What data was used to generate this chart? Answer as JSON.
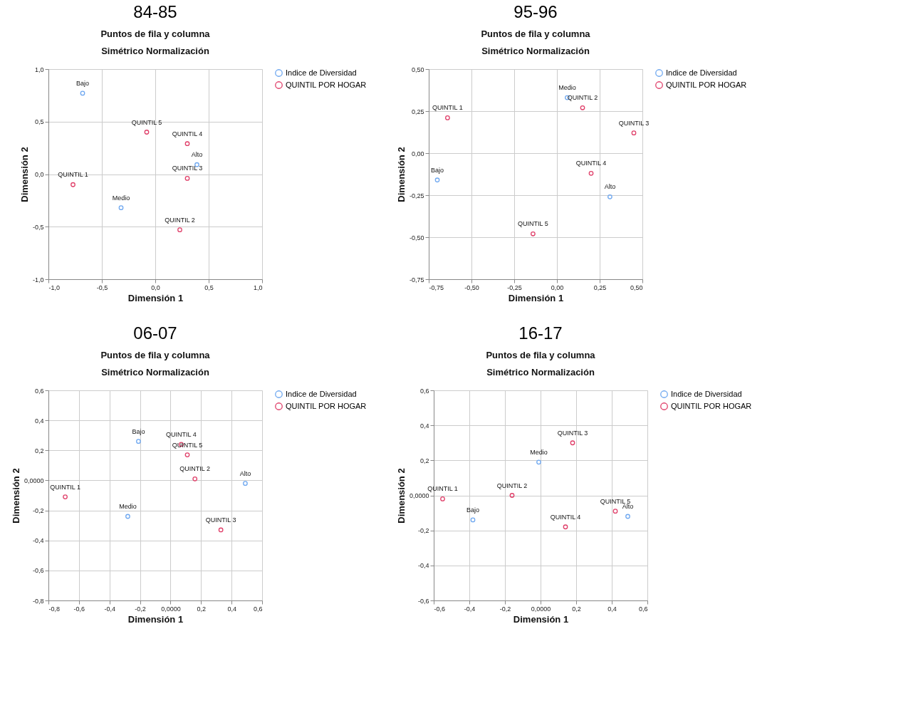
{
  "chart_data": [
    {
      "type": "scatter",
      "title": "84-85",
      "subtitle": "Puntos de fila y columna",
      "xlabel": "Dimensión 1",
      "ylabel": "Dimensión 2",
      "marker": "circle",
      "grid": true,
      "legend": "right",
      "xlim": [
        -1,
        1
      ],
      "ylim": [
        -1,
        1
      ],
      "xticks": [
        {
          "value": -1,
          "label": "-1,0"
        },
        {
          "value": -0.5,
          "label": "-0,5"
        },
        {
          "value": 0,
          "label": "0,0"
        },
        {
          "value": 0.5,
          "label": "0,5"
        },
        {
          "value": 1,
          "label": "1,0"
        }
      ],
      "yticks": [
        {
          "value": -1,
          "label": "-1,0"
        },
        {
          "value": -0.5,
          "label": "-0,5"
        },
        {
          "value": 0,
          "label": "0,0"
        },
        {
          "value": 0.5,
          "label": "0,5"
        },
        {
          "value": 1,
          "label": "1,0"
        }
      ],
      "series": [
        {
          "name": "Indice de Diversidad",
          "color": "#6fa8f0",
          "x": [
            -0.68,
            0.39,
            -0.32
          ],
          "values": [
            0.77,
            0.09,
            -0.32
          ]
        },
        {
          "name": "QUINTIL POR HOGAR",
          "color": "#e0406a",
          "x": [
            -0.77,
            0.23,
            0.3,
            0.3,
            -0.08
          ],
          "values": [
            -0.1,
            -0.53,
            -0.04,
            0.29,
            0.4
          ]
        }
      ],
      "annotations": [
        "Simétrico Normalización",
        {
          "text": "Bajo",
          "x": -0.68,
          "y": 0.77
        },
        {
          "text": "Alto",
          "x": 0.39,
          "y": 0.09
        },
        {
          "text": "Medio",
          "x": -0.32,
          "y": -0.32
        },
        {
          "text": "QUINTIL 1",
          "x": -0.77,
          "y": -0.1
        },
        {
          "text": "QUINTIL 2",
          "x": 0.23,
          "y": -0.53
        },
        {
          "text": "QUINTIL 3",
          "x": 0.3,
          "y": -0.04
        },
        {
          "text": "QUINTIL 4",
          "x": 0.3,
          "y": 0.29
        },
        {
          "text": "QUINTIL 5",
          "x": -0.08,
          "y": 0.4
        }
      ]
    },
    {
      "type": "scatter",
      "title": "95-96",
      "subtitle": "Puntos de fila y columna",
      "xlabel": "Dimensión 1",
      "ylabel": "Dimensión 2",
      "marker": "circle",
      "grid": true,
      "legend": "right",
      "xlim": [
        -0.75,
        0.5
      ],
      "ylim": [
        -0.75,
        0.5
      ],
      "xticks": [
        {
          "value": -0.75,
          "label": "-0,75"
        },
        {
          "value": -0.5,
          "label": "-0,50"
        },
        {
          "value": -0.25,
          "label": "-0,25"
        },
        {
          "value": 0,
          "label": "0,00"
        },
        {
          "value": 0.25,
          "label": "0,25"
        },
        {
          "value": 0.5,
          "label": "0,50"
        }
      ],
      "yticks": [
        {
          "value": -0.75,
          "label": "-0,75"
        },
        {
          "value": -0.5,
          "label": "-0,50"
        },
        {
          "value": -0.25,
          "label": "-0,25"
        },
        {
          "value": 0,
          "label": "0,00"
        },
        {
          "value": 0.25,
          "label": "0,25"
        },
        {
          "value": 0.5,
          "label": "0,50"
        }
      ],
      "series": [
        {
          "name": "Indice de Diversidad",
          "color": "#6fa8f0",
          "x": [
            0.06,
            -0.7,
            0.31
          ],
          "values": [
            0.33,
            -0.16,
            -0.26
          ]
        },
        {
          "name": "QUINTIL POR HOGAR",
          "color": "#e0406a",
          "x": [
            -0.64,
            0.15,
            0.45,
            0.2,
            -0.14
          ],
          "values": [
            0.21,
            0.27,
            0.12,
            -0.12,
            -0.48
          ]
        }
      ],
      "annotations": [
        "Simétrico Normalización",
        {
          "text": "Medio",
          "x": 0.06,
          "y": 0.33
        },
        {
          "text": "Bajo",
          "x": -0.7,
          "y": -0.16
        },
        {
          "text": "Alto",
          "x": 0.31,
          "y": -0.26
        },
        {
          "text": "QUINTIL 1",
          "x": -0.64,
          "y": 0.21
        },
        {
          "text": "QUINTIL 2",
          "x": 0.15,
          "y": 0.27
        },
        {
          "text": "QUINTIL 3",
          "x": 0.45,
          "y": 0.12
        },
        {
          "text": "QUINTIL 4",
          "x": 0.2,
          "y": -0.12
        },
        {
          "text": "QUINTIL 5",
          "x": -0.14,
          "y": -0.48
        }
      ]
    },
    {
      "type": "scatter",
      "title": "06-07",
      "subtitle": "Puntos de fila y columna",
      "xlabel": "Dimensión 1",
      "ylabel": "Dimensión 2",
      "marker": "circle",
      "grid": true,
      "legend": "right",
      "xlim": [
        -0.8,
        0.6
      ],
      "ylim": [
        -0.8,
        0.6
      ],
      "xticks": [
        {
          "value": -0.8,
          "label": "-0,8"
        },
        {
          "value": -0.6,
          "label": "-0,6"
        },
        {
          "value": -0.4,
          "label": "-0,4"
        },
        {
          "value": -0.2,
          "label": "-0,2"
        },
        {
          "value": 0,
          "label": "0,0000"
        },
        {
          "value": 0.2,
          "label": "0,2"
        },
        {
          "value": 0.4,
          "label": "0,4"
        },
        {
          "value": 0.6,
          "label": "0,6"
        }
      ],
      "yticks": [
        {
          "value": -0.8,
          "label": "-0,8"
        },
        {
          "value": -0.6,
          "label": "-0,6"
        },
        {
          "value": -0.4,
          "label": "-0,4"
        },
        {
          "value": -0.2,
          "label": "-0,2"
        },
        {
          "value": 0,
          "label": "0,0000"
        },
        {
          "value": 0.2,
          "label": "0,2"
        },
        {
          "value": 0.4,
          "label": "0,4"
        },
        {
          "value": 0.6,
          "label": "0,6"
        }
      ],
      "series": [
        {
          "name": "Indice de Diversidad",
          "color": "#6fa8f0",
          "x": [
            -0.21,
            -0.28,
            0.49
          ],
          "values": [
            0.26,
            -0.24,
            -0.02
          ]
        },
        {
          "name": "QUINTIL POR HOGAR",
          "color": "#e0406a",
          "x": [
            -0.69,
            0.16,
            0.33,
            0.07,
            0.11
          ],
          "values": [
            -0.11,
            0.01,
            -0.33,
            0.24,
            0.17
          ]
        }
      ],
      "annotations": [
        "Simétrico Normalización",
        {
          "text": "Bajo",
          "x": -0.21,
          "y": 0.26
        },
        {
          "text": "Medio",
          "x": -0.28,
          "y": -0.24
        },
        {
          "text": "Alto",
          "x": 0.49,
          "y": -0.02
        },
        {
          "text": "QUINTIL 1",
          "x": -0.69,
          "y": -0.11
        },
        {
          "text": "QUINTIL 2",
          "x": 0.16,
          "y": 0.01
        },
        {
          "text": "QUINTIL 3",
          "x": 0.33,
          "y": -0.33
        },
        {
          "text": "QUINTIL 4",
          "x": 0.07,
          "y": 0.24
        },
        {
          "text": "QUINTIL 5",
          "x": 0.11,
          "y": 0.17
        }
      ]
    },
    {
      "type": "scatter",
      "title": "16-17",
      "subtitle": "Puntos de fila y columna",
      "xlabel": "Dimensión 1",
      "ylabel": "Dimensión 2",
      "marker": "circle",
      "grid": true,
      "legend": "right",
      "xlim": [
        -0.6,
        0.6
      ],
      "ylim": [
        -0.6,
        0.6
      ],
      "xticks": [
        {
          "value": -0.6,
          "label": "-0,6"
        },
        {
          "value": -0.4,
          "label": "-0,4"
        },
        {
          "value": -0.2,
          "label": "-0,2"
        },
        {
          "value": 0,
          "label": "0,0000"
        },
        {
          "value": 0.2,
          "label": "0,2"
        },
        {
          "value": 0.4,
          "label": "0,4"
        },
        {
          "value": 0.6,
          "label": "0,6"
        }
      ],
      "yticks": [
        {
          "value": -0.6,
          "label": "-0,6"
        },
        {
          "value": -0.4,
          "label": "-0,4"
        },
        {
          "value": -0.2,
          "label": "-0,2"
        },
        {
          "value": 0,
          "label": "0,0000"
        },
        {
          "value": 0.2,
          "label": "0,2"
        },
        {
          "value": 0.4,
          "label": "0,4"
        },
        {
          "value": 0.6,
          "label": "0,6"
        }
      ],
      "series": [
        {
          "name": "Indice de Diversidad",
          "color": "#6fa8f0",
          "x": [
            -0.01,
            -0.38,
            0.49
          ],
          "values": [
            0.19,
            -0.14,
            -0.12
          ]
        },
        {
          "name": "QUINTIL POR HOGAR",
          "color": "#e0406a",
          "x": [
            -0.55,
            -0.16,
            0.18,
            0.14,
            0.42
          ],
          "values": [
            -0.02,
            0.0,
            0.3,
            -0.18,
            -0.09
          ]
        }
      ],
      "annotations": [
        "Simétrico Normalización",
        {
          "text": "Medio",
          "x": -0.01,
          "y": 0.19
        },
        {
          "text": "Bajo",
          "x": -0.38,
          "y": -0.14
        },
        {
          "text": "Alto",
          "x": 0.49,
          "y": -0.12
        },
        {
          "text": "QUINTIL 1",
          "x": -0.55,
          "y": -0.02
        },
        {
          "text": "QUINTIL 2",
          "x": -0.16,
          "y": 0.0
        },
        {
          "text": "QUINTIL 3",
          "x": 0.18,
          "y": 0.3
        },
        {
          "text": "QUINTIL 4",
          "x": 0.14,
          "y": -0.18
        },
        {
          "text": "QUINTIL 5",
          "x": 0.42,
          "y": -0.09
        }
      ]
    }
  ]
}
